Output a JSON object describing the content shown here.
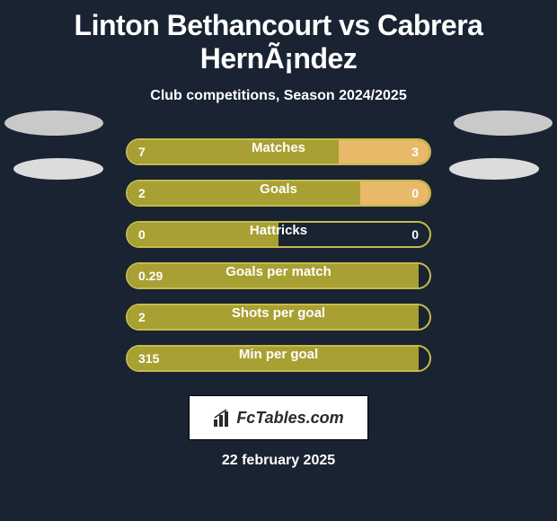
{
  "title": "Linton Bethancourt vs Cabrera HernÃ¡ndez",
  "subtitle": "Club competitions, Season 2024/2025",
  "date": "22 february 2025",
  "logo_text": "FcTables.com",
  "colors": {
    "background": "#1a2332",
    "left_fill": "#a8a032",
    "border": "#c4bc4a",
    "right_fill_active": "#e8b968",
    "text": "#ffffff"
  },
  "rows": [
    {
      "label": "Matches",
      "left": "7",
      "right": "3",
      "left_pct": 70,
      "right_fill": true
    },
    {
      "label": "Goals",
      "left": "2",
      "right": "0",
      "left_pct": 77,
      "right_fill": true
    },
    {
      "label": "Hattricks",
      "left": "0",
      "right": "0",
      "left_pct": 50,
      "right_fill": false
    },
    {
      "label": "Goals per match",
      "left": "0.29",
      "right": "",
      "left_pct": 100,
      "right_fill": false
    },
    {
      "label": "Shots per goal",
      "left": "2",
      "right": "",
      "left_pct": 100,
      "right_fill": false
    },
    {
      "label": "Min per goal",
      "left": "315",
      "right": "",
      "left_pct": 100,
      "right_fill": false
    }
  ],
  "bar_style": {
    "container_width": 340,
    "container_height": 30,
    "border_radius": 15,
    "border_width": 2,
    "value_fontsize": 14,
    "label_fontsize": 15
  }
}
